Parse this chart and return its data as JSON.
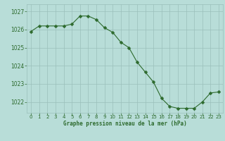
{
  "x": [
    0,
    1,
    2,
    3,
    4,
    5,
    6,
    7,
    8,
    9,
    10,
    11,
    12,
    13,
    14,
    15,
    16,
    17,
    18,
    19,
    20,
    21,
    22,
    23
  ],
  "y": [
    1025.9,
    1026.2,
    1026.2,
    1026.2,
    1026.2,
    1026.3,
    1026.75,
    1026.75,
    1026.55,
    1026.1,
    1025.85,
    1025.3,
    1025.0,
    1024.2,
    1023.65,
    1023.1,
    1022.2,
    1021.75,
    1021.65,
    1021.65,
    1021.65,
    1022.0,
    1022.5,
    1022.55
  ],
  "line_color": "#2d6a2d",
  "marker": "D",
  "marker_size": 2.5,
  "bg_color": "#b8ddd8",
  "grid_color": "#9bbfbb",
  "xlabel": "Graphe pression niveau de la mer (hPa)",
  "xlabel_color": "#2d6a2d",
  "tick_color": "#2d6a2d",
  "ylim_min": 1021.4,
  "ylim_max": 1027.4,
  "yticks": [
    1022,
    1023,
    1024,
    1025,
    1026,
    1027
  ],
  "xticks": [
    0,
    1,
    2,
    3,
    4,
    5,
    6,
    7,
    8,
    9,
    10,
    11,
    12,
    13,
    14,
    15,
    16,
    17,
    18,
    19,
    20,
    21,
    22,
    23
  ]
}
